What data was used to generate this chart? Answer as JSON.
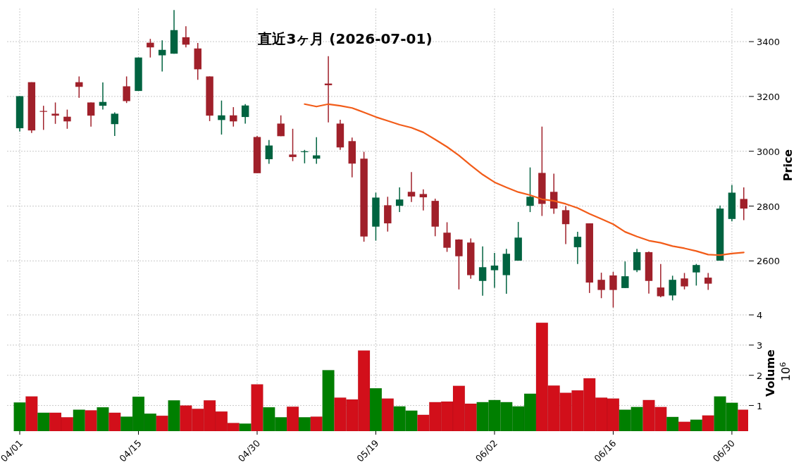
{
  "chart_data": [
    {
      "type": "candlestick",
      "title": "直近3ヶ月 (2026-07-01)",
      "ylabel": "Price",
      "grid": true,
      "tick_labels": "y",
      "categories": [
        null,
        null,
        null,
        null,
        null,
        null,
        null,
        null,
        null,
        null,
        null,
        null,
        null,
        null,
        null,
        null,
        null,
        null,
        null,
        null,
        null,
        null,
        null,
        null,
        null,
        null,
        null,
        null,
        null,
        null,
        null,
        null,
        null,
        null,
        null,
        null,
        null,
        null,
        null,
        null,
        null,
        null,
        null,
        null,
        null,
        null,
        null,
        null,
        null,
        null,
        null,
        null,
        null,
        null,
        null,
        null,
        null,
        null,
        null,
        null,
        null,
        null
      ],
      "ylim": [
        2403,
        3521
      ],
      "yticks": [
        2600,
        2800,
        3000,
        3200,
        3400
      ],
      "ohlc": [
        [
          3084,
          3201,
          3072,
          3201
        ],
        [
          3252,
          3252,
          3067,
          3076
        ],
        [
          3147,
          3166,
          3078,
          3145
        ],
        [
          3137,
          3178,
          3100,
          3130
        ],
        [
          3126,
          3152,
          3082,
          3109
        ],
        [
          3252,
          3273,
          3195,
          3235
        ],
        [
          3178,
          3178,
          3090,
          3130
        ],
        [
          3166,
          3251,
          3152,
          3180
        ],
        [
          3099,
          3142,
          3056,
          3137
        ],
        [
          3237,
          3273,
          3176,
          3183
        ],
        [
          3220,
          3342,
          3220,
          3342
        ],
        [
          3396,
          3410,
          3342,
          3379
        ],
        [
          3350,
          3405,
          3291,
          3370
        ],
        [
          3356,
          3515,
          3356,
          3442
        ],
        [
          3416,
          3456,
          3379,
          3389
        ],
        [
          3375,
          3395,
          3261,
          3299
        ],
        [
          3273,
          3273,
          3110,
          3130
        ],
        [
          3114,
          3185,
          3061,
          3131
        ],
        [
          3131,
          3161,
          3090,
          3109
        ],
        [
          3125,
          3172,
          3101,
          3167
        ],
        [
          3052,
          3056,
          2920,
          2920
        ],
        [
          2971,
          3041,
          2954,
          3021
        ],
        [
          3101,
          3131,
          3055,
          3055
        ],
        [
          2988,
          3082,
          2964,
          2979
        ],
        [
          2999,
          3005,
          2956,
          3000
        ],
        [
          2973,
          3051,
          2954,
          2985
        ],
        [
          3247,
          3347,
          3105,
          3241
        ],
        [
          3101,
          3115,
          3005,
          3014
        ],
        [
          3037,
          3050,
          2905,
          2955
        ],
        [
          2973,
          2998,
          2670,
          2689
        ],
        [
          2725,
          2849,
          2674,
          2831
        ],
        [
          2803,
          2834,
          2707,
          2737
        ],
        [
          2801,
          2868,
          2778,
          2824
        ],
        [
          2852,
          2924,
          2815,
          2835
        ],
        [
          2844,
          2861,
          2784,
          2832
        ],
        [
          2819,
          2827,
          2690,
          2725
        ],
        [
          2703,
          2741,
          2633,
          2648
        ],
        [
          2678,
          2679,
          2496,
          2617
        ],
        [
          2667,
          2682,
          2535,
          2548
        ],
        [
          2527,
          2653,
          2473,
          2577
        ],
        [
          2566,
          2629,
          2502,
          2583
        ],
        [
          2548,
          2644,
          2480,
          2626
        ],
        [
          2601,
          2742,
          2601,
          2685
        ],
        [
          2801,
          2941,
          2778,
          2834
        ],
        [
          2921,
          3090,
          2764,
          2808
        ],
        [
          2852,
          2918,
          2772,
          2791
        ],
        [
          2785,
          2800,
          2661,
          2734
        ],
        [
          2650,
          2706,
          2589,
          2688
        ],
        [
          2737,
          2737,
          2483,
          2521
        ],
        [
          2531,
          2557,
          2464,
          2494
        ],
        [
          2547,
          2560,
          2430,
          2494
        ],
        [
          2501,
          2598,
          2501,
          2544
        ],
        [
          2566,
          2644,
          2559,
          2632
        ],
        [
          2632,
          2634,
          2481,
          2527
        ],
        [
          2503,
          2589,
          2467,
          2471
        ],
        [
          2474,
          2546,
          2456,
          2531
        ],
        [
          2536,
          2556,
          2496,
          2507
        ],
        [
          2558,
          2589,
          2510,
          2585
        ],
        [
          2539,
          2556,
          2494,
          2517
        ],
        [
          2601,
          2802,
          2601,
          2791
        ],
        [
          2753,
          2877,
          2744,
          2849
        ],
        [
          2826,
          2868,
          2749,
          2791
        ]
      ],
      "colors": [
        "#006340",
        "#a0202a",
        "#a0202a",
        "#a0202a",
        "#a0202a",
        "#a0202a",
        "#a0202a",
        "#006340",
        "#006340",
        "#a0202a",
        "#006340",
        "#a0202a",
        "#006340",
        "#006340",
        "#a0202a",
        "#a0202a",
        "#a0202a",
        "#006340",
        "#a0202a",
        "#006340",
        "#a0202a",
        "#006340",
        "#a0202a",
        "#a0202a",
        "#006340",
        "#006340",
        "#a0202a",
        "#a0202a",
        "#a0202a",
        "#a0202a",
        "#006340",
        "#a0202a",
        "#006340",
        "#a0202a",
        "#a0202a",
        "#a0202a",
        "#a0202a",
        "#a0202a",
        "#a0202a",
        "#006340",
        "#006340",
        "#006340",
        "#006340",
        "#006340",
        "#a0202a",
        "#a0202a",
        "#a0202a",
        "#006340",
        "#a0202a",
        "#a0202a",
        "#a0202a",
        "#006340",
        "#006340",
        "#a0202a",
        "#a0202a",
        "#006340",
        "#a0202a",
        "#006340",
        "#a0202a",
        "#006340",
        "#006340",
        "#a0202a"
      ],
      "series": [
        {
          "type": "line",
          "color": "#f25c19",
          "values": [
            null,
            null,
            null,
            null,
            null,
            null,
            null,
            null,
            null,
            null,
            null,
            null,
            null,
            null,
            null,
            null,
            null,
            null,
            null,
            null,
            null,
            null,
            null,
            null,
            3172,
            3163,
            3172,
            3166,
            3158,
            3142,
            3125,
            3111,
            3097,
            3086,
            3069,
            3043,
            3016,
            2985,
            2949,
            2915,
            2887,
            2868,
            2851,
            2840,
            2825,
            2819,
            2808,
            2793,
            2772,
            2753,
            2734,
            2706,
            2689,
            2674,
            2666,
            2654,
            2646,
            2636,
            2623,
            2621,
            2627,
            2631
          ]
        }
      ]
    },
    {
      "type": "bar",
      "ylabel": "Volume",
      "annotations": [
        "10$^{6}$"
      ],
      "grid": true,
      "categories": [
        "04/01",
        null,
        null,
        null,
        null,
        null,
        null,
        null,
        null,
        null,
        "04/15",
        null,
        null,
        null,
        null,
        null,
        null,
        null,
        null,
        null,
        "04/30",
        null,
        null,
        null,
        null,
        null,
        null,
        null,
        null,
        null,
        "05/19",
        null,
        null,
        null,
        null,
        null,
        null,
        null,
        null,
        null,
        "06/02",
        null,
        null,
        null,
        null,
        null,
        null,
        null,
        null,
        null,
        "06/16",
        null,
        null,
        null,
        null,
        null,
        null,
        null,
        null,
        null,
        "06/30",
        null
      ],
      "ylim": [
        0.15,
        4
      ],
      "yticks": [
        1,
        2,
        3,
        4
      ],
      "values": [
        1.1,
        1.3,
        0.76,
        0.76,
        0.61,
        0.86,
        0.84,
        0.94,
        0.76,
        0.63,
        1.29,
        0.73,
        0.66,
        1.17,
        1.0,
        0.89,
        1.17,
        0.8,
        0.42,
        0.4,
        1.7,
        0.94,
        0.61,
        0.96,
        0.61,
        0.63,
        2.17,
        1.26,
        1.2,
        2.82,
        1.57,
        1.23,
        0.97,
        0.83,
        0.69,
        1.11,
        1.13,
        1.65,
        1.06,
        1.11,
        1.18,
        1.11,
        0.97,
        1.39,
        3.74,
        1.66,
        1.42,
        1.5,
        1.9,
        1.26,
        1.23,
        0.86,
        0.95,
        1.18,
        0.95,
        0.62,
        0.46,
        0.53,
        0.67,
        1.3,
        1.09,
        0.86
      ],
      "colors": [
        "#007f00",
        "#d20f1a",
        "#007f00",
        "#d20f1a",
        "#d20f1a",
        "#007f00",
        "#d20f1a",
        "#007f00",
        "#d20f1a",
        "#007f00",
        "#007f00",
        "#007f00",
        "#d20f1a",
        "#007f00",
        "#d20f1a",
        "#d20f1a",
        "#d20f1a",
        "#d20f1a",
        "#d20f1a",
        "#007f00",
        "#d20f1a",
        "#007f00",
        "#007f00",
        "#d20f1a",
        "#007f00",
        "#d20f1a",
        "#007f00",
        "#d20f1a",
        "#d20f1a",
        "#d20f1a",
        "#007f00",
        "#d20f1a",
        "#007f00",
        "#007f00",
        "#d20f1a",
        "#d20f1a",
        "#d20f1a",
        "#d20f1a",
        "#d20f1a",
        "#007f00",
        "#007f00",
        "#007f00",
        "#007f00",
        "#007f00",
        "#d20f1a",
        "#d20f1a",
        "#d20f1a",
        "#d20f1a",
        "#d20f1a",
        "#d20f1a",
        "#d20f1a",
        "#007f00",
        "#007f00",
        "#d20f1a",
        "#d20f1a",
        "#007f00",
        "#d20f1a",
        "#007f00",
        "#d20f1a",
        "#007f00",
        "#007f00",
        "#d20f1a"
      ]
    }
  ]
}
